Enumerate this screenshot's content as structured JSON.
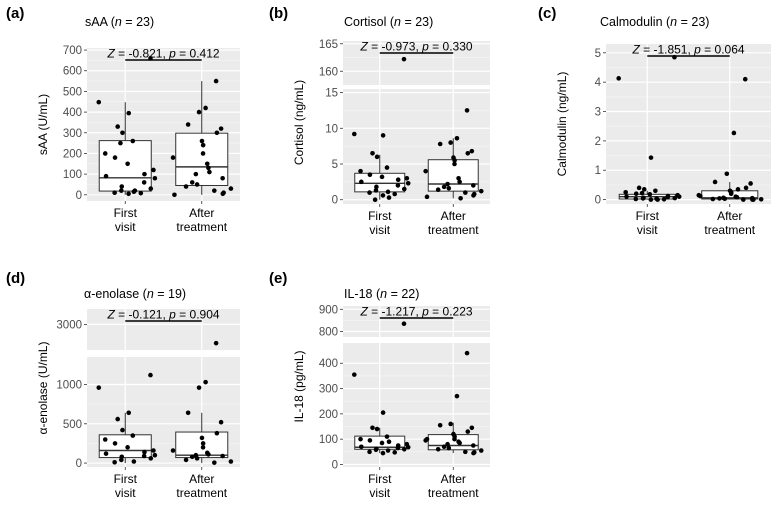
{
  "chart_data": [
    {
      "id": "a",
      "panel_label": "(a)",
      "type": "boxplot",
      "title": "sAA",
      "n_label": "n",
      "n_value": "= 23",
      "ylabel": "sAA (U/mL)",
      "categories": [
        "First\nvisit",
        "After\ntreatment"
      ],
      "stat_text": "Z = -0.821, p = 0.412",
      "y_ticks": [
        0,
        100,
        200,
        300,
        400,
        500,
        600,
        700
      ],
      "ylim": [
        -30,
        710
      ],
      "boxes": [
        {
          "q1": 18,
          "median": 82,
          "q3": 262,
          "lower_whisker": 0,
          "upper_whisker": 448
        },
        {
          "q1": 45,
          "median": 135,
          "q3": 298,
          "lower_whisker": 0,
          "upper_whisker": 550
        }
      ],
      "points": [
        [
          660,
          448,
          395,
          330,
          300,
          260,
          200,
          180,
          150,
          120,
          100,
          90,
          80,
          60,
          40,
          30,
          20,
          15,
          10,
          8,
          5,
          20,
          250
        ],
        [
          550,
          420,
          400,
          340,
          320,
          300,
          260,
          240,
          200,
          180,
          150,
          130,
          100,
          80,
          60,
          50,
          40,
          30,
          20,
          10,
          5,
          0,
          110
        ]
      ]
    },
    {
      "id": "b",
      "panel_label": "(b)",
      "type": "boxplot",
      "title": "Cortisol",
      "n_label": "n",
      "n_value": "= 23",
      "ylabel": "Cortisol (ng/mL)",
      "categories": [
        "First\nvisit",
        "After\ntreatment"
      ],
      "stat_text": "Z = -0.973, p = 0.330",
      "y_ticks_lower": [
        0,
        5,
        10,
        15
      ],
      "y_ticks_upper": [
        160,
        165
      ],
      "ylim_lower": [
        -0.6,
        15.5
      ],
      "ylim_upper": [
        157.5,
        165.5
      ],
      "boxes": [
        {
          "q1": 1.1,
          "median": 2.3,
          "q3": 3.7,
          "lower_whisker": 0.0,
          "upper_whisker": 6.3
        },
        {
          "q1": 1.2,
          "median": 2.2,
          "q3": 5.6,
          "lower_whisker": 0.2,
          "upper_whisker": 8.6
        }
      ],
      "points": [
        [
          162.2,
          9.2,
          9.0,
          6.5,
          6.0,
          4.5,
          4.0,
          3.5,
          3.2,
          3.0,
          2.8,
          2.5,
          2.3,
          2.0,
          1.8,
          1.5,
          1.3,
          1.1,
          1.0,
          0.8,
          0.6,
          0.3,
          0.0
        ],
        [
          12.5,
          8.6,
          8.0,
          7.8,
          6.8,
          6.5,
          5.9,
          5.5,
          5.0,
          4.0,
          3.0,
          2.5,
          2.2,
          2.0,
          1.8,
          1.6,
          1.4,
          1.2,
          1.0,
          0.8,
          0.6,
          0.4,
          0.2
        ]
      ]
    },
    {
      "id": "c",
      "panel_label": "(c)",
      "type": "boxplot",
      "title": "Calmodulin",
      "n_label": "n",
      "n_value": "= 23",
      "ylabel": "Calmodulin (ng/mL)",
      "categories": [
        "First\nvisit",
        "After\ntreatment"
      ],
      "stat_text": "Z = -1.851, p = 0.064",
      "y_ticks": [
        0,
        1,
        2,
        3,
        4,
        5
      ],
      "ylim": [
        -0.15,
        5.3
      ],
      "boxes": [
        {
          "q1": 0.02,
          "median": 0.1,
          "q3": 0.18,
          "lower_whisker": 0.0,
          "upper_whisker": 0.3
        },
        {
          "q1": 0.02,
          "median": 0.06,
          "q3": 0.3,
          "lower_whisker": 0.0,
          "upper_whisker": 0.6
        }
      ],
      "points": [
        [
          4.85,
          4.13,
          1.43,
          0.4,
          0.35,
          0.3,
          0.25,
          0.2,
          0.18,
          0.15,
          0.12,
          0.1,
          0.1,
          0.08,
          0.06,
          0.05,
          0.04,
          0.03,
          0.02,
          0.01,
          0.0,
          0.0,
          0.22
        ],
        [
          4.1,
          2.27,
          0.88,
          0.6,
          0.55,
          0.4,
          0.3,
          0.25,
          0.2,
          0.15,
          0.1,
          0.08,
          0.06,
          0.05,
          0.04,
          0.03,
          0.02,
          0.01,
          0.0,
          0.0,
          0.0,
          0.12,
          0.35
        ]
      ]
    },
    {
      "id": "d",
      "panel_label": "(d)",
      "type": "boxplot",
      "title": "α-enolase",
      "n_label": "n",
      "n_value": "= 19",
      "ylabel": "α-enolase (U/mL)",
      "categories": [
        "First\nvisit",
        "After\ntreatment"
      ],
      "stat_text": "Z = -0.121, p = 0.904",
      "y_ticks_lower": [
        0,
        500,
        1000
      ],
      "y_ticks_upper": [
        3000
      ],
      "ylim_lower": [
        -50,
        1350
      ],
      "ylim_upper": [
        2700,
        3180
      ],
      "boxes": [
        {
          "q1": 70,
          "median": 160,
          "q3": 360,
          "lower_whisker": 0,
          "upper_whisker": 640
        },
        {
          "q1": 70,
          "median": 100,
          "q3": 395,
          "lower_whisker": 0,
          "upper_whisker": 640
        }
      ],
      "points": [
        [
          1120,
          960,
          640,
          560,
          420,
          350,
          300,
          250,
          200,
          160,
          140,
          120,
          100,
          90,
          80,
          60,
          40,
          20,
          10
        ],
        [
          2780,
          1030,
          960,
          640,
          520,
          380,
          320,
          250,
          200,
          160,
          130,
          110,
          100,
          90,
          80,
          60,
          40,
          20,
          5
        ]
      ]
    },
    {
      "id": "e",
      "panel_label": "(e)",
      "type": "boxplot",
      "title": "IL-18",
      "n_label": "n",
      "n_value": "= 22",
      "ylabel": "IL-18 (pg/mL)",
      "categories": [
        "First\nvisit",
        "After\ntreatment"
      ],
      "stat_text": "Z = -1.217, p = 0.223",
      "y_ticks_lower": [
        0,
        100,
        200,
        300,
        400
      ],
      "y_ticks_upper": [
        800,
        900
      ],
      "ylim_lower": [
        -10,
        480
      ],
      "ylim_upper": [
        775,
        915
      ],
      "boxes": [
        {
          "q1": 60,
          "median": 68,
          "q3": 112,
          "lower_whisker": 45,
          "upper_whisker": 145
        },
        {
          "q1": 58,
          "median": 75,
          "q3": 118,
          "lower_whisker": 45,
          "upper_whisker": 165
        }
      ],
      "points": [
        [
          835,
          355,
          205,
          145,
          140,
          110,
          100,
          95,
          85,
          80,
          75,
          70,
          68,
          65,
          62,
          60,
          58,
          55,
          50,
          48,
          45,
          90
        ],
        [
          440,
          270,
          160,
          155,
          145,
          130,
          120,
          110,
          100,
          95,
          90,
          85,
          80,
          75,
          70,
          65,
          60,
          55,
          50,
          48,
          45,
          100
        ]
      ]
    }
  ]
}
